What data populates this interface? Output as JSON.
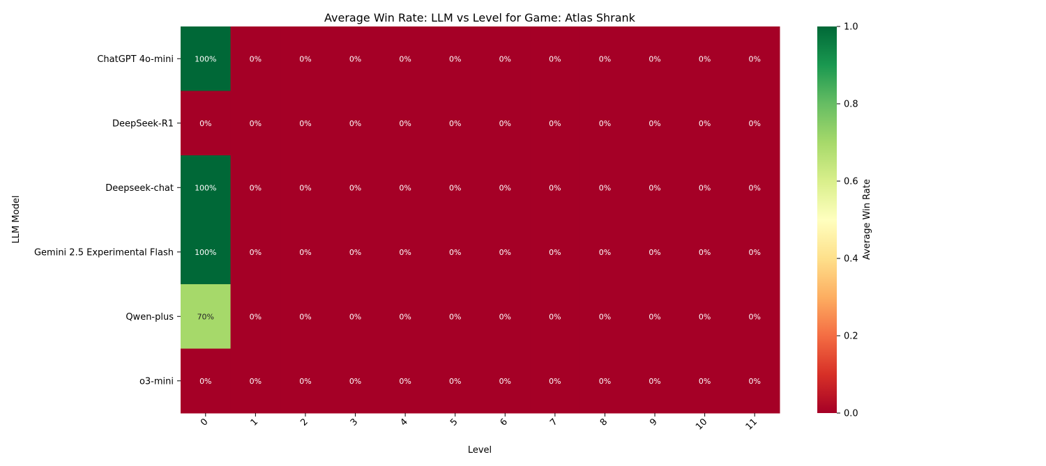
{
  "chart_data": {
    "type": "heatmap",
    "title": "Average Win Rate: LLM vs Level for Game: Atlas Shrank",
    "xlabel": "Level",
    "ylabel": "LLM Model",
    "x_categories": [
      "0",
      "1",
      "2",
      "3",
      "4",
      "5",
      "6",
      "7",
      "8",
      "9",
      "10",
      "11"
    ],
    "y_categories": [
      "ChatGPT 4o-mini",
      "DeepSeek-R1",
      "Deepseek-chat",
      "Gemini 2.5 Experimental Flash",
      "Qwen-plus",
      "o3-mini"
    ],
    "values": [
      [
        1.0,
        0,
        0,
        0,
        0,
        0,
        0,
        0,
        0,
        0,
        0,
        0
      ],
      [
        0,
        0,
        0,
        0,
        0,
        0,
        0,
        0,
        0,
        0,
        0,
        0
      ],
      [
        1.0,
        0,
        0,
        0,
        0,
        0,
        0,
        0,
        0,
        0,
        0,
        0
      ],
      [
        1.0,
        0,
        0,
        0,
        0,
        0,
        0,
        0,
        0,
        0,
        0,
        0
      ],
      [
        0.7,
        0,
        0,
        0,
        0,
        0,
        0,
        0,
        0,
        0,
        0,
        0
      ],
      [
        0,
        0,
        0,
        0,
        0,
        0,
        0,
        0,
        0,
        0,
        0,
        0
      ]
    ],
    "cell_labels": [
      [
        "100%",
        "0%",
        "0%",
        "0%",
        "0%",
        "0%",
        "0%",
        "0%",
        "0%",
        "0%",
        "0%",
        "0%"
      ],
      [
        "0%",
        "0%",
        "0%",
        "0%",
        "0%",
        "0%",
        "0%",
        "0%",
        "0%",
        "0%",
        "0%",
        "0%"
      ],
      [
        "100%",
        "0%",
        "0%",
        "0%",
        "0%",
        "0%",
        "0%",
        "0%",
        "0%",
        "0%",
        "0%",
        "0%"
      ],
      [
        "100%",
        "0%",
        "0%",
        "0%",
        "0%",
        "0%",
        "0%",
        "0%",
        "0%",
        "0%",
        "0%",
        "0%"
      ],
      [
        "70%",
        "0%",
        "0%",
        "0%",
        "0%",
        "0%",
        "0%",
        "0%",
        "0%",
        "0%",
        "0%",
        "0%"
      ],
      [
        "0%",
        "0%",
        "0%",
        "0%",
        "0%",
        "0%",
        "0%",
        "0%",
        "0%",
        "0%",
        "0%",
        "0%"
      ]
    ],
    "colorbar": {
      "label": "Average Win Rate",
      "range": [
        0,
        1
      ],
      "ticks": [
        "0.0",
        "0.2",
        "0.4",
        "0.6",
        "0.8",
        "1.0"
      ],
      "colormap": "RdYlGn"
    }
  }
}
